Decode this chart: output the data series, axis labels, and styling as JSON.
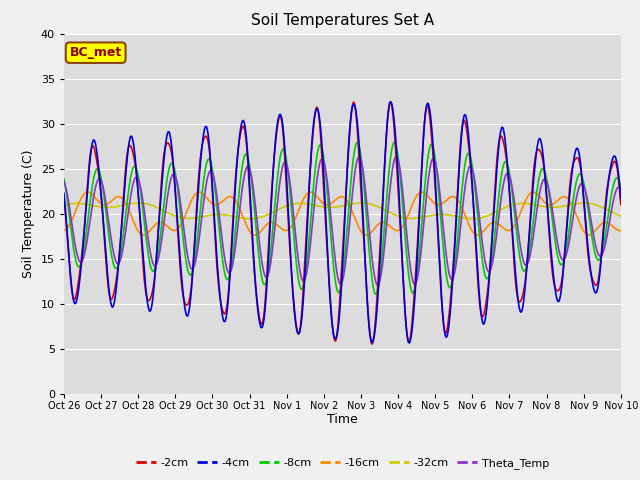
{
  "title": "Soil Temperatures Set A",
  "xlabel": "Time",
  "ylabel": "Soil Temperature (C)",
  "ylim": [
    0,
    40
  ],
  "xlim": [
    0,
    15
  ],
  "bg_color": "#dcdcdc",
  "fig_bg_color": "#f0f0f0",
  "annotation_text": "BC_met",
  "annotation_bg": "#ffff00",
  "annotation_border": "#8B4513",
  "series": {
    "-2cm": {
      "color": "#dd0000",
      "lw": 1.2
    },
    "-4cm": {
      "color": "#0000dd",
      "lw": 1.2
    },
    "-8cm": {
      "color": "#00cc00",
      "lw": 1.2
    },
    "-16cm": {
      "color": "#ff8800",
      "lw": 1.2
    },
    "-32cm": {
      "color": "#cccc00",
      "lw": 1.2
    },
    "Theta_Temp": {
      "color": "#8833cc",
      "lw": 1.2
    }
  },
  "xtick_labels": [
    "Oct 26",
    "Oct 27",
    "Oct 28",
    "Oct 29",
    "Oct 30",
    "Oct 31",
    "Nov 1",
    "Nov 2",
    "Nov 3",
    "Nov 4",
    "Nov 5",
    "Nov 6",
    "Nov 7",
    "Nov 8",
    "Nov 9",
    "Nov 10"
  ],
  "xtick_positions": [
    0,
    1,
    2,
    3,
    4,
    5,
    6,
    7,
    8,
    9,
    10,
    11,
    12,
    13,
    14,
    15
  ],
  "ytick_positions": [
    0,
    5,
    10,
    15,
    20,
    25,
    30,
    35,
    40
  ]
}
